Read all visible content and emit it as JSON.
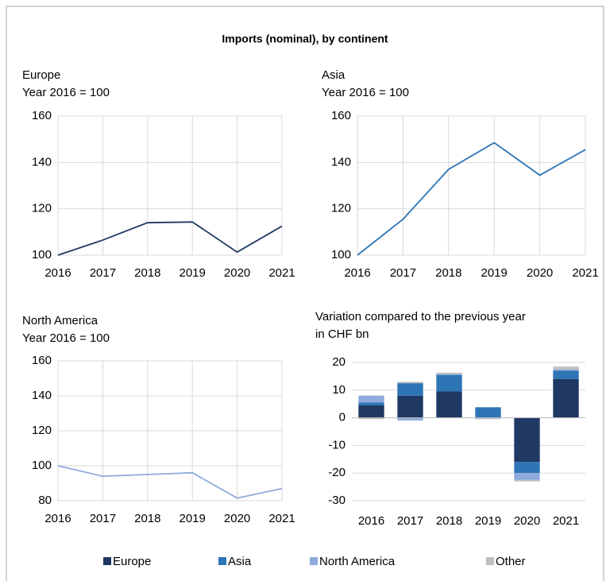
{
  "title": "Imports (nominal), by continent",
  "chart_data": [
    {
      "type": "line",
      "title": "Europe",
      "subtitle": "Year 2016 = 100",
      "categories": [
        "2016",
        "2017",
        "2018",
        "2019",
        "2020",
        "2021"
      ],
      "values": [
        100,
        106.5,
        114,
        114.3,
        101.3,
        112.5
      ],
      "color": "#1f3864",
      "ylim": [
        100,
        160
      ],
      "yticks": [
        100,
        120,
        140,
        160
      ],
      "grid": true
    },
    {
      "type": "line",
      "title": "Asia",
      "subtitle": "Year 2016 = 100",
      "categories": [
        "2016",
        "2017",
        "2018",
        "2019",
        "2020",
        "2021"
      ],
      "values": [
        100,
        115.5,
        137,
        148.5,
        134.5,
        145.5
      ],
      "color": "#2e75b6",
      "ylim": [
        100,
        160
      ],
      "yticks": [
        100,
        120,
        140,
        160
      ],
      "grid": true
    },
    {
      "type": "line",
      "title": "North America",
      "subtitle": "Year 2016 = 100",
      "categories": [
        "2016",
        "2017",
        "2018",
        "2019",
        "2020",
        "2021"
      ],
      "values": [
        100,
        94,
        95,
        96,
        81.5,
        87
      ],
      "color": "#8faadc",
      "ylim": [
        80,
        160
      ],
      "yticks": [
        80,
        100,
        120,
        140,
        160
      ],
      "grid": true
    },
    {
      "type": "bar",
      "stacked": true,
      "title": "Variation compared to the previous year",
      "subtitle": "in CHF bn",
      "categories": [
        "2016",
        "2017",
        "2018",
        "2019",
        "2020",
        "2021"
      ],
      "series": [
        {
          "name": "Europe",
          "color": "#1f3864",
          "values": [
            4.5,
            8,
            9.5,
            0,
            -16,
            14
          ]
        },
        {
          "name": "Asia",
          "color": "#2e75b6",
          "values": [
            1,
            4.5,
            6,
            3.8,
            -4,
            3
          ]
        },
        {
          "name": "North America",
          "color": "#8faadc",
          "values": [
            2.5,
            -1,
            0.3,
            -0.3,
            -2.5,
            0.5
          ]
        },
        {
          "name": "Other",
          "color": "#bfbfbf",
          "values": [
            -0.5,
            0.5,
            0.5,
            -0.2,
            -0.5,
            1
          ]
        }
      ],
      "ylim": [
        -30,
        20
      ],
      "yticks": [
        -30,
        -20,
        -10,
        0,
        10,
        20
      ],
      "grid": true
    }
  ]
}
